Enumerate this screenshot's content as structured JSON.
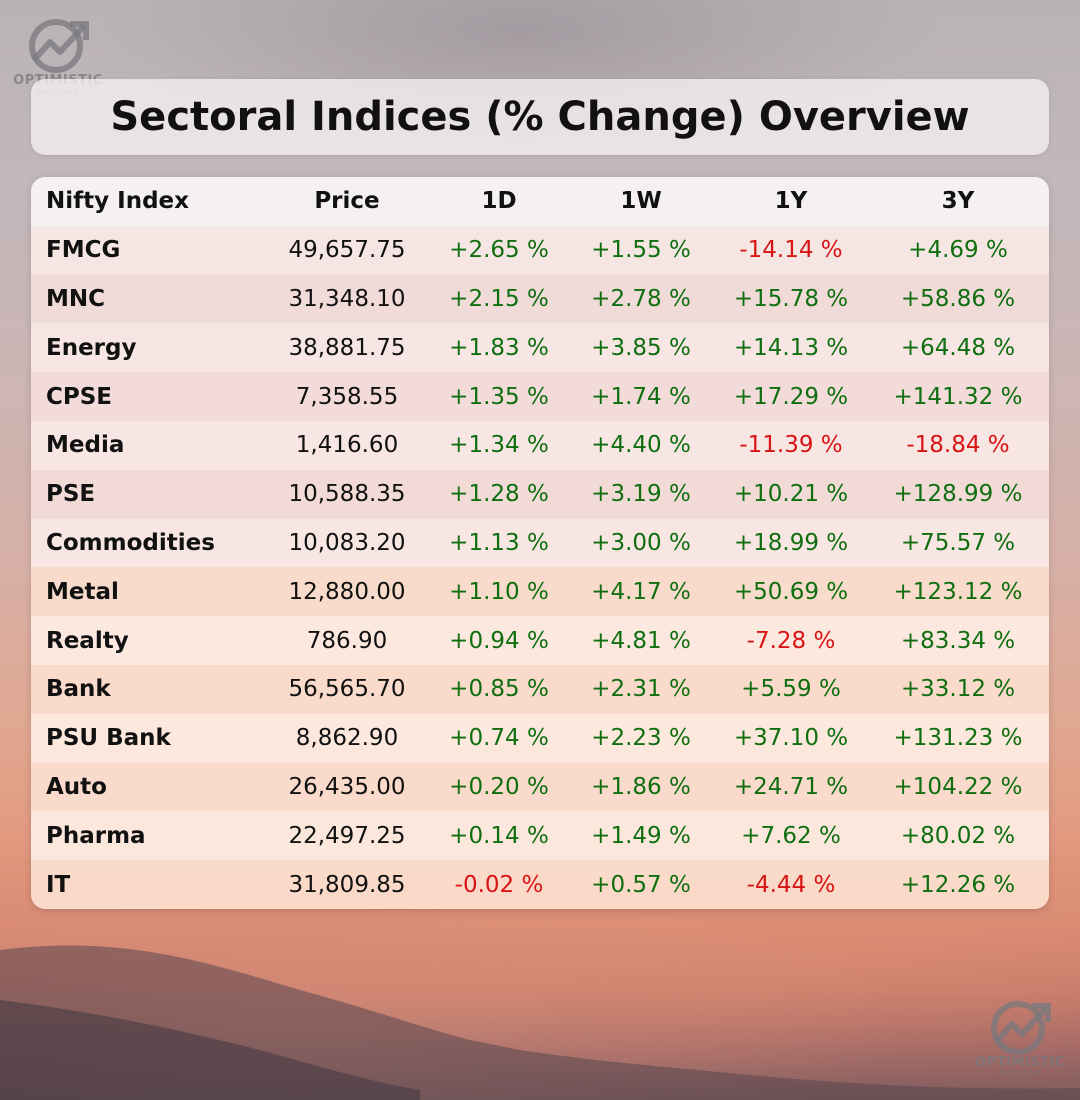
{
  "title": "Sectoral Indices (% Change) Overview",
  "logo": {
    "line1": "OPTIMISTIC",
    "line2": "OUTLOOK"
  },
  "colors": {
    "positive": "#0f6e0f",
    "negative": "#d81414"
  },
  "table": {
    "headers": [
      "Nifty Index",
      "Price",
      "1D",
      "1W",
      "1Y",
      "3Y"
    ],
    "rows": [
      [
        "FMCG",
        "49,657.75",
        "+2.65 %",
        "+1.55 %",
        "-14.14 %",
        "+4.69 %"
      ],
      [
        "MNC",
        "31,348.10",
        "+2.15 %",
        "+2.78 %",
        "+15.78 %",
        "+58.86 %"
      ],
      [
        "Energy",
        "38,881.75",
        "+1.83 %",
        "+3.85 %",
        "+14.13 %",
        "+64.48 %"
      ],
      [
        "CPSE",
        "7,358.55",
        "+1.35 %",
        "+1.74 %",
        "+17.29 %",
        "+141.32 %"
      ],
      [
        "Media",
        "1,416.60",
        "+1.34 %",
        "+4.40 %",
        "-11.39 %",
        "-18.84 %"
      ],
      [
        "PSE",
        "10,588.35",
        "+1.28 %",
        "+3.19 %",
        "+10.21 %",
        "+128.99 %"
      ],
      [
        "Commodities",
        "10,083.20",
        "+1.13 %",
        "+3.00 %",
        "+18.99 %",
        "+75.57 %"
      ],
      [
        "Metal",
        "12,880.00",
        "+1.10 %",
        "+4.17 %",
        "+50.69 %",
        "+123.12 %"
      ],
      [
        "Realty",
        "786.90",
        "+0.94 %",
        "+4.81 %",
        "-7.28 %",
        "+83.34 %"
      ],
      [
        "Bank",
        "56,565.70",
        "+0.85 %",
        "+2.31 %",
        "+5.59 %",
        "+33.12 %"
      ],
      [
        "PSU Bank",
        "8,862.90",
        "+0.74 %",
        "+2.23 %",
        "+37.10 %",
        "+131.23 %"
      ],
      [
        "Auto",
        "26,435.00",
        "+0.20 %",
        "+1.86 %",
        "+24.71 %",
        "+104.22 %"
      ],
      [
        "Pharma",
        "22,497.25",
        "+0.14 %",
        "+1.49 %",
        "+7.62 %",
        "+80.02 %"
      ],
      [
        "IT",
        "31,809.85",
        "-0.02 %",
        "+0.57 %",
        "-4.44 %",
        "+12.26 %"
      ]
    ]
  }
}
